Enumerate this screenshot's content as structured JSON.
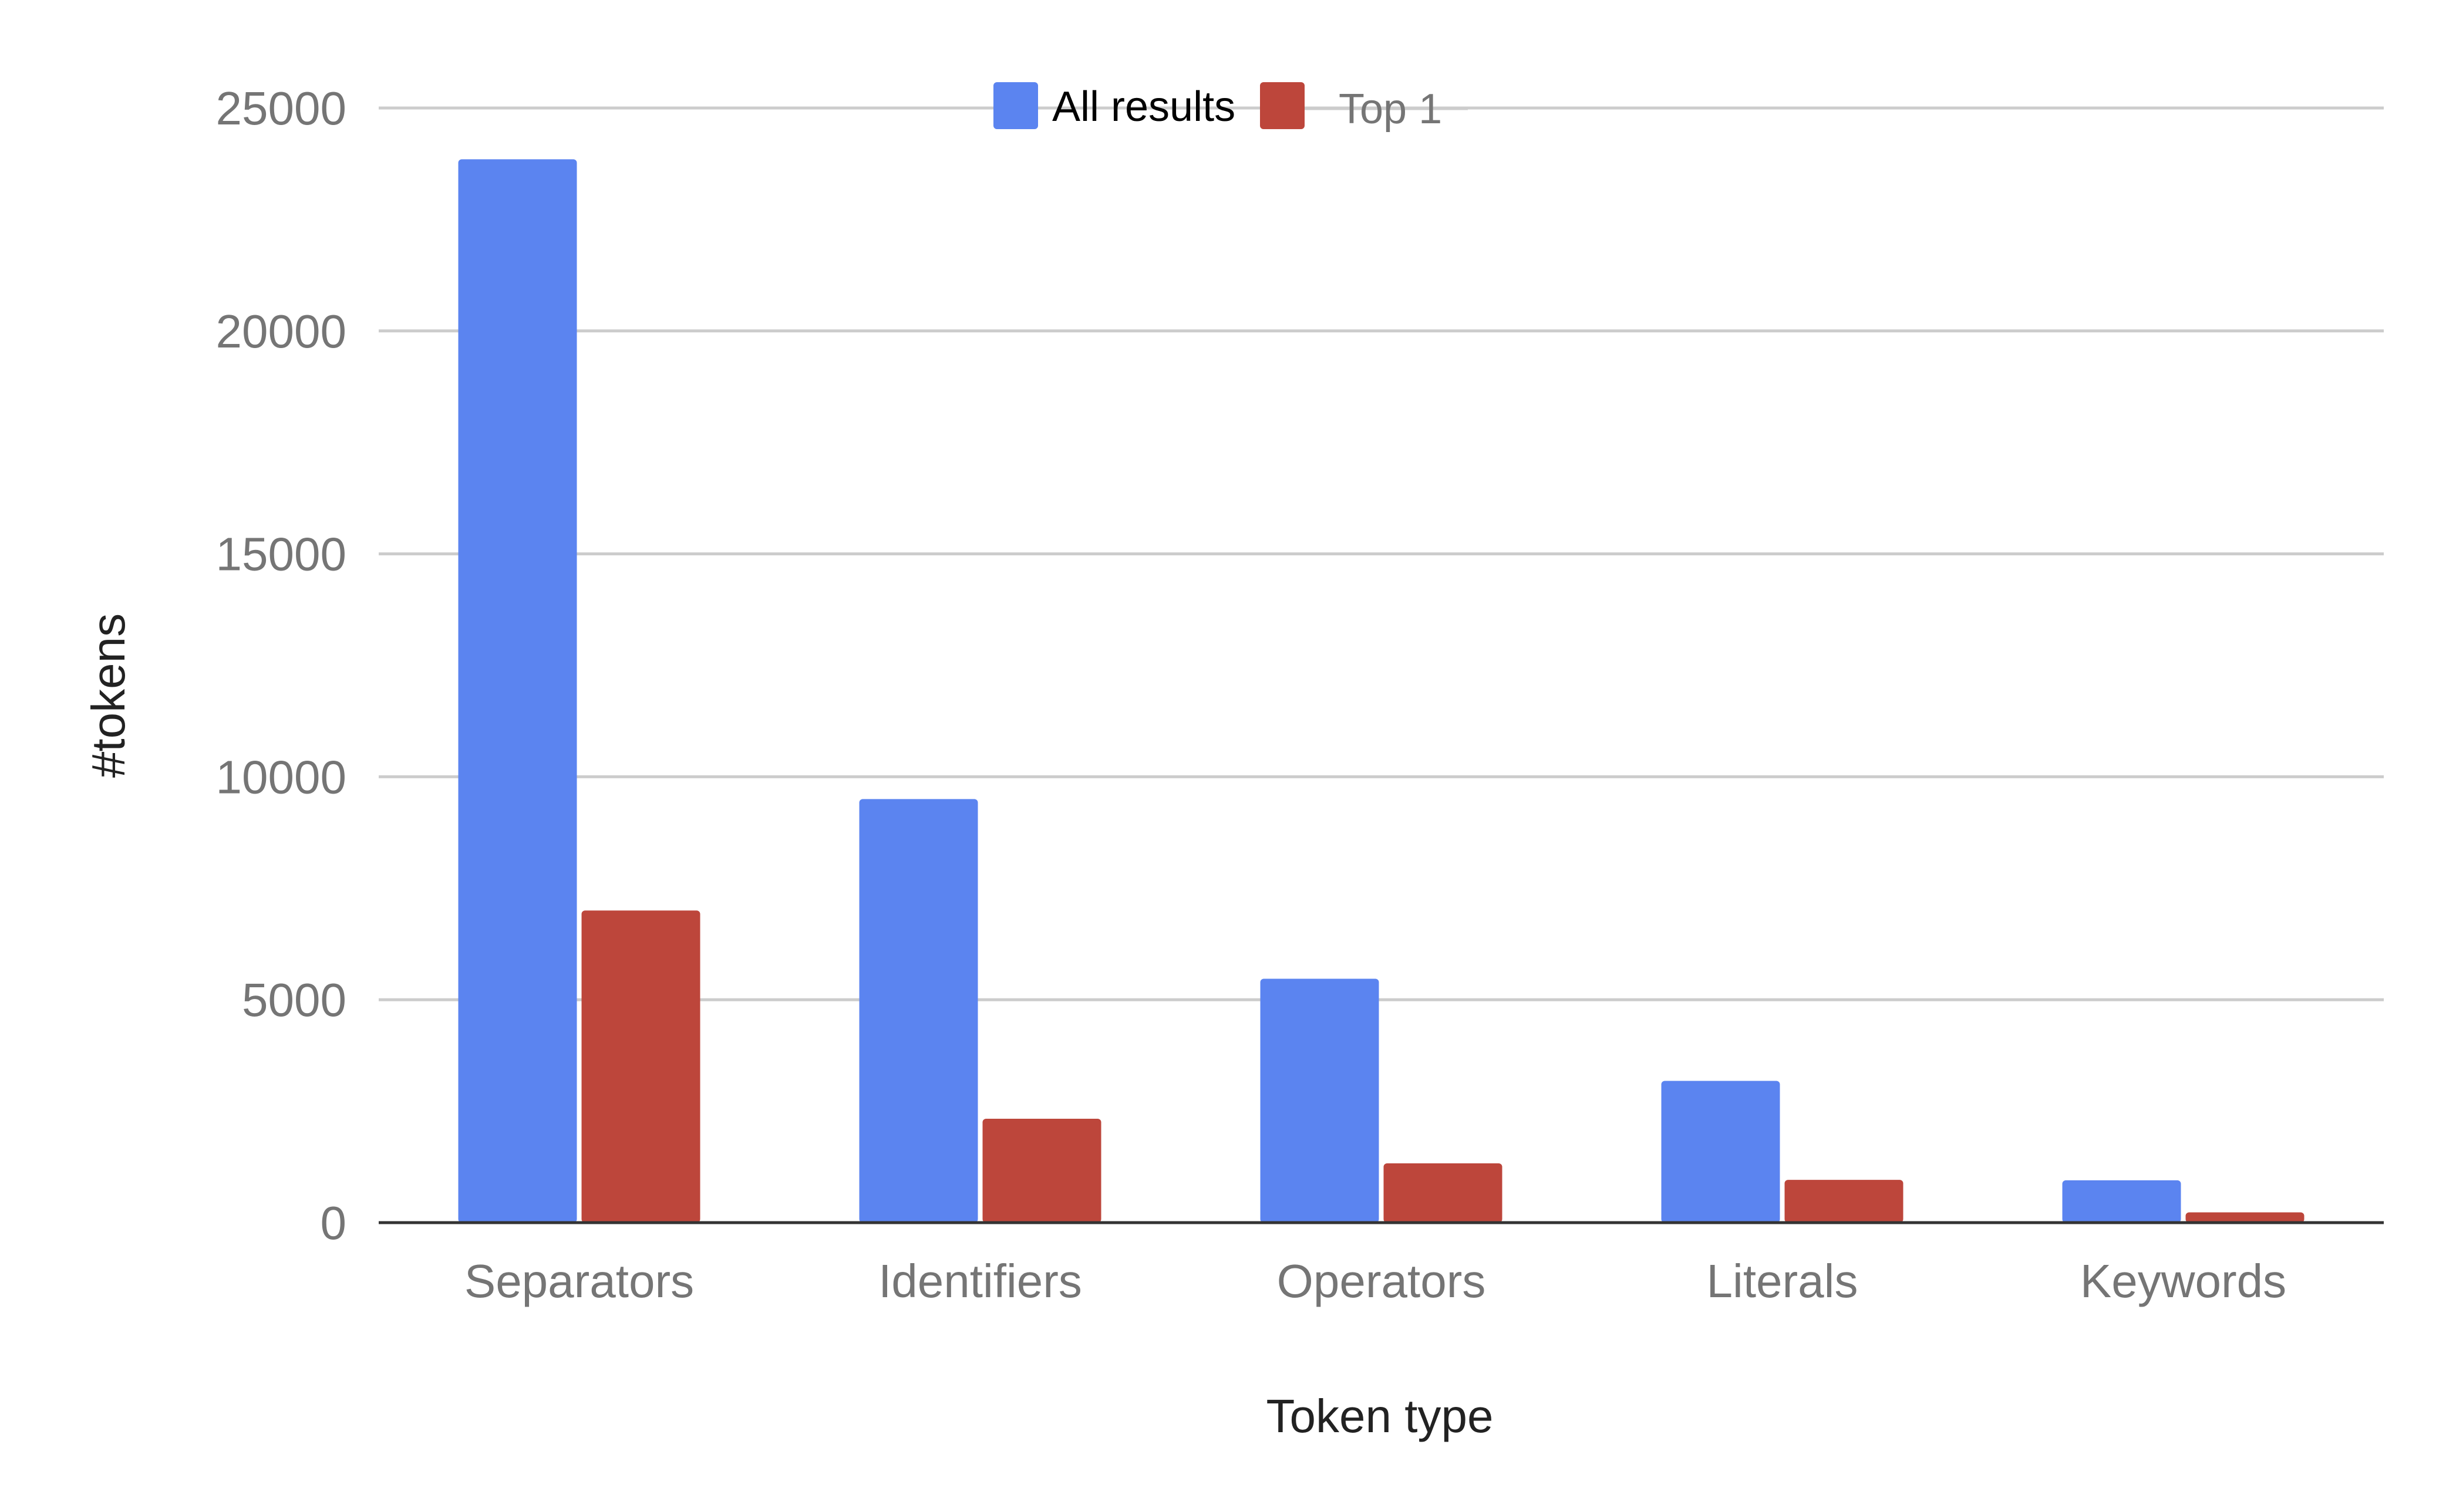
{
  "chart_data": {
    "type": "bar",
    "title": "",
    "xlabel": "Token type",
    "ylabel": "#tokens",
    "categories": [
      "Separators",
      "Identifiers",
      "Operators",
      "Literals",
      "Keywords"
    ],
    "series": [
      {
        "name": "All results",
        "color": "#5b84f0",
        "values": [
          23850,
          9500,
          5470,
          3180,
          950
        ]
      },
      {
        "name": "Top 1",
        "color": "#bd463b",
        "values": [
          7000,
          2330,
          1330,
          960,
          230
        ]
      }
    ],
    "ylim": [
      0,
      25000
    ],
    "yticks": [
      0,
      5000,
      10000,
      15000,
      20000,
      25000
    ],
    "grid": true,
    "legend": "top-center"
  }
}
